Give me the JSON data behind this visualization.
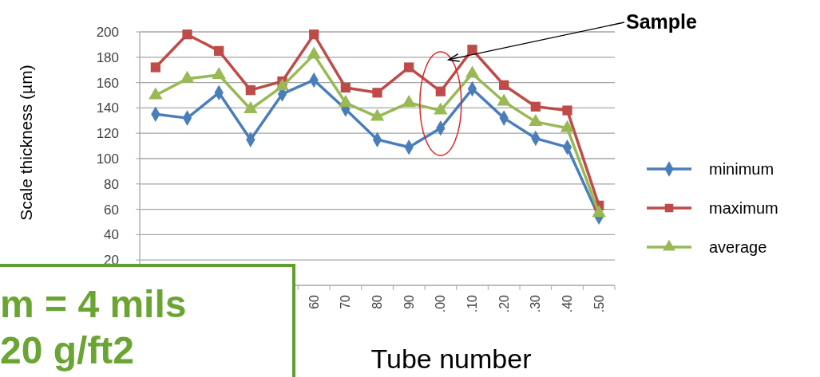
{
  "chart_data": {
    "type": "line",
    "xlabel": "Tube number",
    "ylabel": "Scale thickness  (µm)",
    "categories": [
      null,
      null,
      null,
      null,
      null,
      "60",
      "70",
      "80",
      "90",
      ".00",
      ".10",
      ".20",
      ".30",
      ".40",
      ".50"
    ],
    "series": [
      {
        "name": "minimum",
        "color": "#4a7ebb",
        "marker": "diamond",
        "values": [
          135,
          132,
          152,
          115,
          151,
          162,
          139,
          115,
          109,
          124,
          155,
          132,
          116,
          109,
          54
        ]
      },
      {
        "name": "maximum",
        "color": "#be4b48",
        "marker": "square",
        "values": [
          172,
          198,
          185,
          154,
          161,
          198,
          156,
          152,
          172,
          153,
          186,
          158,
          141,
          138,
          63
        ]
      },
      {
        "name": "average",
        "color": "#98b954",
        "marker": "triangle",
        "values": [
          150,
          163,
          166,
          139,
          157,
          182,
          144,
          133,
          144,
          138,
          167,
          145,
          129,
          124,
          57
        ]
      }
    ],
    "ylim": [
      0,
      200
    ],
    "yticks": [
      20,
      40,
      60,
      80,
      100,
      120,
      140,
      160,
      180,
      200
    ],
    "grid": "y",
    "legend": "right",
    "annotations": [
      "m = 4 mils",
      "20 g/ft2",
      "Sample"
    ]
  }
}
